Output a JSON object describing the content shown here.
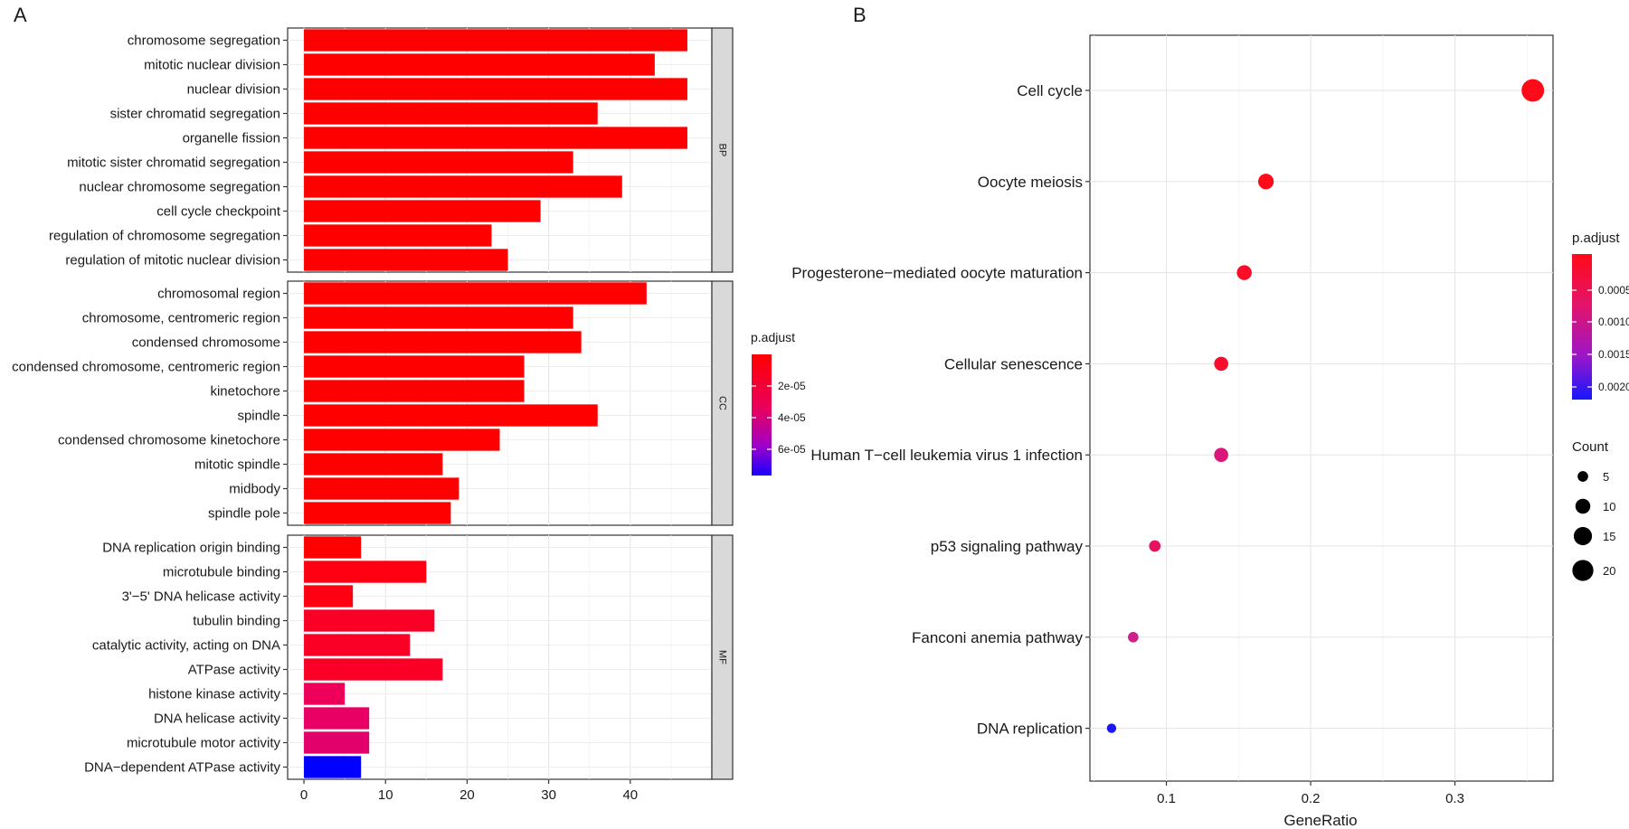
{
  "chart_data": [
    {
      "type": "bar",
      "panel_label": "A",
      "orientation": "horizontal",
      "xlim": [
        -2,
        50
      ],
      "x_ticks": [
        0,
        10,
        20,
        30,
        40
      ],
      "legend": {
        "title": "p.adjust",
        "ticks": [
          "2e-05",
          "4e-05",
          "6e-05"
        ],
        "color_high": "#ff0000",
        "color_low": "#0000ff",
        "placement": "right"
      },
      "facets": [
        {
          "name": "BP",
          "bars": [
            {
              "label": "chromosome segregation",
              "value": 47,
              "color": "#ff0000"
            },
            {
              "label": "mitotic nuclear division",
              "value": 43,
              "color": "#ff0000"
            },
            {
              "label": "nuclear division",
              "value": 47,
              "color": "#ff0000"
            },
            {
              "label": "sister chromatid segregation",
              "value": 36,
              "color": "#ff0000"
            },
            {
              "label": "organelle fission",
              "value": 47,
              "color": "#ff0000"
            },
            {
              "label": "mitotic sister chromatid segregation",
              "value": 33,
              "color": "#ff0000"
            },
            {
              "label": "nuclear chromosome segregation",
              "value": 39,
              "color": "#ff0000"
            },
            {
              "label": "cell cycle checkpoint",
              "value": 29,
              "color": "#ff0000"
            },
            {
              "label": "regulation of chromosome segregation",
              "value": 23,
              "color": "#ff0000"
            },
            {
              "label": "regulation of mitotic nuclear division",
              "value": 25,
              "color": "#ff0000"
            }
          ]
        },
        {
          "name": "CC",
          "bars": [
            {
              "label": "chromosomal region",
              "value": 42,
              "color": "#ff0000"
            },
            {
              "label": "chromosome, centromeric region",
              "value": 33,
              "color": "#ff0000"
            },
            {
              "label": "condensed chromosome",
              "value": 34,
              "color": "#ff0000"
            },
            {
              "label": "condensed chromosome, centromeric region",
              "value": 27,
              "color": "#ff0000"
            },
            {
              "label": "kinetochore",
              "value": 27,
              "color": "#ff0000"
            },
            {
              "label": "spindle",
              "value": 36,
              "color": "#ff0000"
            },
            {
              "label": "condensed chromosome kinetochore",
              "value": 24,
              "color": "#ff0000"
            },
            {
              "label": "mitotic spindle",
              "value": 17,
              "color": "#ff0000"
            },
            {
              "label": "midbody",
              "value": 19,
              "color": "#ff0000"
            },
            {
              "label": "spindle pole",
              "value": 18,
              "color": "#ff0000"
            }
          ]
        },
        {
          "name": "MF",
          "bars": [
            {
              "label": "DNA replication origin binding",
              "value": 7,
              "color": "#ff0000"
            },
            {
              "label": "microtubule binding",
              "value": 15,
              "color": "#ff0012"
            },
            {
              "label": "3'−5' DNA helicase activity",
              "value": 6,
              "color": "#ff0012"
            },
            {
              "label": "tubulin binding",
              "value": 16,
              "color": "#fb0026"
            },
            {
              "label": "catalytic activity, acting on DNA",
              "value": 13,
              "color": "#fb0026"
            },
            {
              "label": "ATPase activity",
              "value": 17,
              "color": "#fb0026"
            },
            {
              "label": "histone kinase activity",
              "value": 5,
              "color": "#ee005a"
            },
            {
              "label": "DNA helicase activity",
              "value": 8,
              "color": "#e80064"
            },
            {
              "label": "microtubule motor activity",
              "value": 8,
              "color": "#e2006b"
            },
            {
              "label": "DNA−dependent ATPase activity",
              "value": 7,
              "color": "#0000ff"
            }
          ]
        }
      ]
    },
    {
      "type": "scatter",
      "panel_label": "B",
      "xlabel": "GeneRatio",
      "xlim": [
        0.047,
        0.368
      ],
      "x_ticks": [
        "0.1",
        "0.2",
        "0.3"
      ],
      "points": [
        {
          "label": "Cell cycle",
          "gene_ratio": 0.354,
          "count": 23,
          "p_adjust": 1e-05,
          "color": "#ff0a18"
        },
        {
          "label": "Oocyte meiosis",
          "gene_ratio": 0.169,
          "count": 11,
          "p_adjust": 5e-05,
          "color": "#ff0a18"
        },
        {
          "label": "Progesterone−mediated oocyte maturation",
          "gene_ratio": 0.154,
          "count": 10,
          "p_adjust": 0.0001,
          "color": "#fc0c27"
        },
        {
          "label": "Cellular senescence",
          "gene_ratio": 0.138,
          "count": 9,
          "p_adjust": 0.00015,
          "color": "#fa0c2c"
        },
        {
          "label": "Human T−cell leukemia virus 1 infection",
          "gene_ratio": 0.138,
          "count": 9,
          "p_adjust": 0.0008,
          "color": "#d9187a"
        },
        {
          "label": "p53 signaling pathway",
          "gene_ratio": 0.092,
          "count": 6,
          "p_adjust": 0.0005,
          "color": "#e6125f"
        },
        {
          "label": "Fanconi anemia pathway",
          "gene_ratio": 0.077,
          "count": 5,
          "p_adjust": 0.001,
          "color": "#cf1e8c"
        },
        {
          "label": "DNA replication",
          "gene_ratio": 0.062,
          "count": 4,
          "p_adjust": 0.0021,
          "color": "#1a16f5"
        }
      ],
      "legend_color": {
        "title": "p.adjust",
        "ticks": [
          "0.0005",
          "0.0010",
          "0.0015",
          "0.0020"
        ],
        "placement": "right"
      },
      "legend_size": {
        "title": "Count",
        "ticks": [
          "5",
          "10",
          "15",
          "20"
        ],
        "values": [
          5,
          10,
          15,
          20
        ],
        "placement": "right"
      }
    }
  ]
}
